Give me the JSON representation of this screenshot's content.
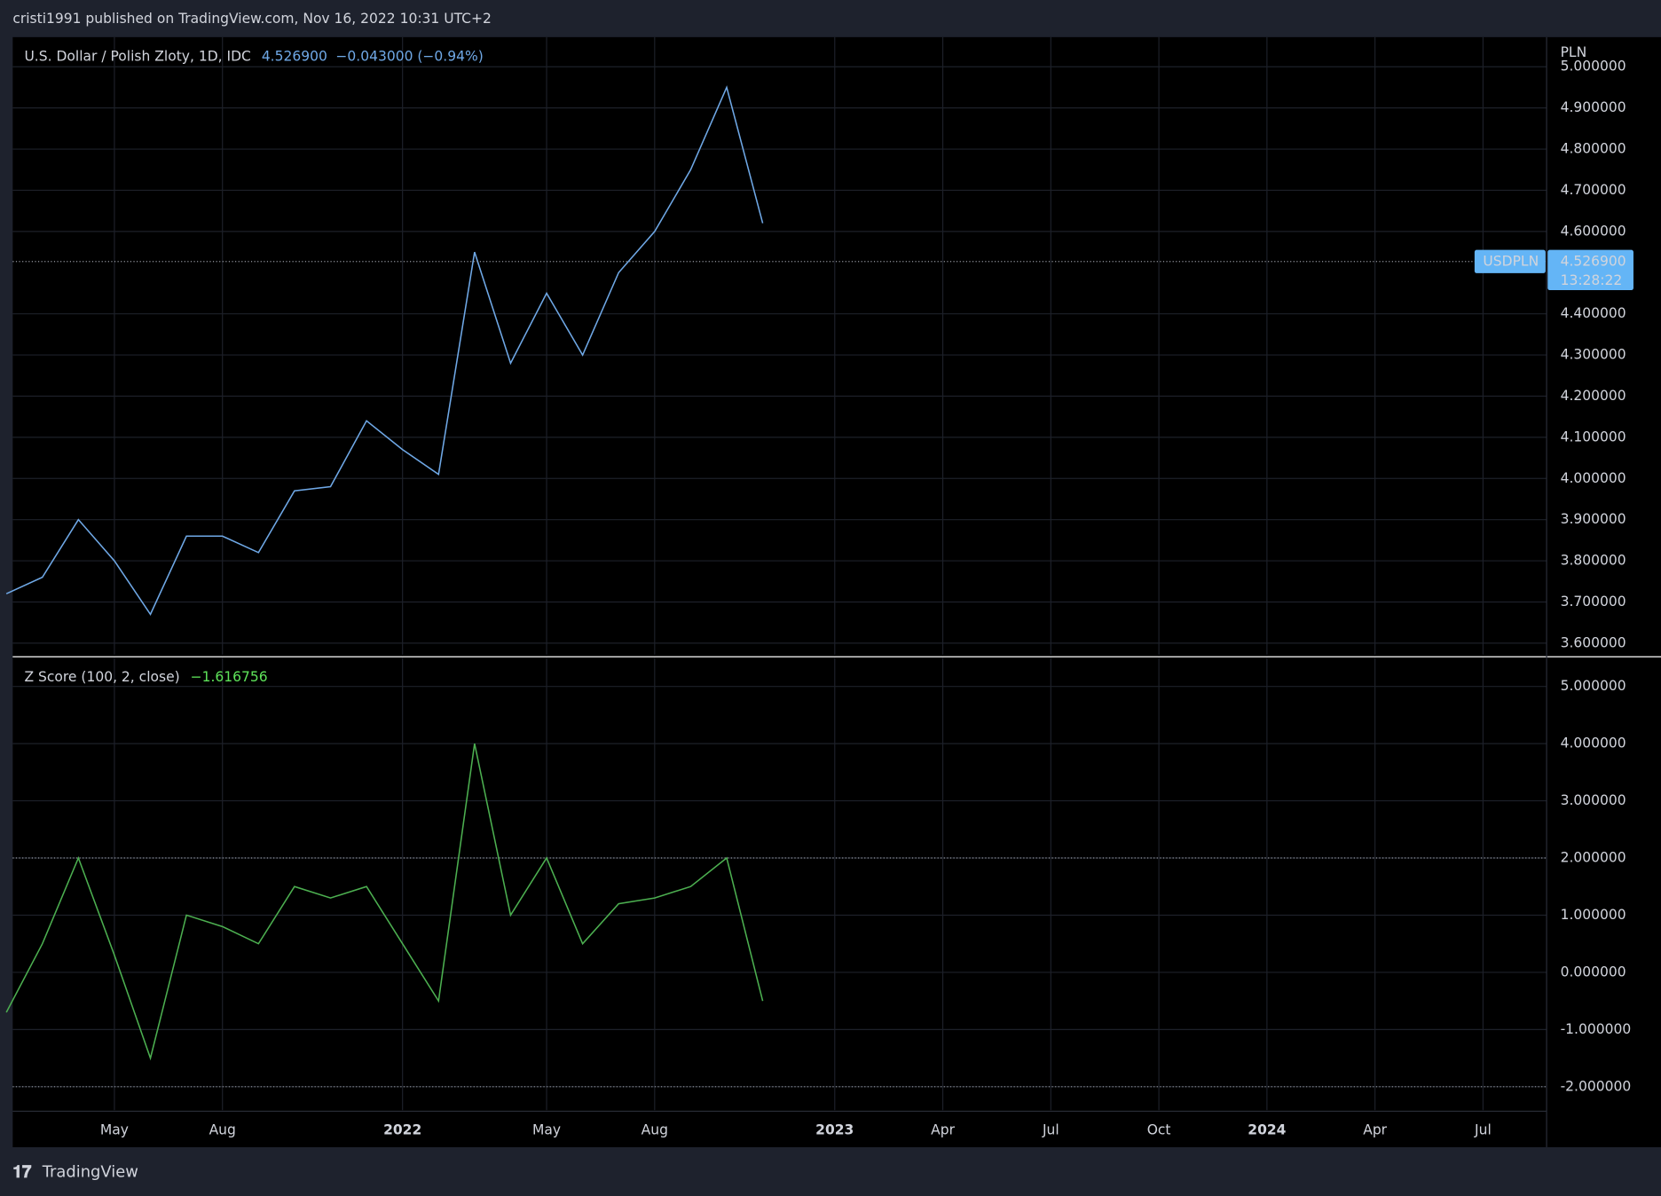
{
  "header": {
    "text": "cristi1991 published on TradingView.com, Nov 16, 2022 10:31 UTC+2"
  },
  "footer": {
    "brand": "TradingView"
  },
  "chart_data": [
    {
      "type": "line",
      "y_label": "PLN",
      "symbol": "USDPLN",
      "countdown": "13:28:22",
      "change": "−0.043000 (−0.94%)",
      "last_value": {
        "value": 4.5269,
        "label": "4.526900"
      },
      "xlim": [
        "2021-02",
        "2024-09"
      ],
      "x": [
        "2021-02",
        "2021-03",
        "2021-04",
        "2021-05",
        "2021-06",
        "2021-07",
        "2021-08",
        "2021-09",
        "2021-10",
        "2021-11",
        "2021-12",
        "2022-01",
        "2022-02",
        "2022-03",
        "2022-04",
        "2022-05",
        "2022-06",
        "2022-07",
        "2022-08",
        "2022-09",
        "2022-10",
        "2022-11"
      ],
      "series": [
        {
          "name": "U.S. Dollar / Polish Zloty, 1D, IDC",
          "color": "#6fa8e6",
          "values": [
            3.72,
            3.76,
            3.9,
            3.8,
            3.67,
            3.86,
            3.86,
            3.82,
            3.97,
            3.98,
            4.14,
            4.07,
            4.01,
            4.55,
            4.28,
            4.45,
            4.3,
            4.5,
            4.6,
            4.75,
            4.95,
            4.62
          ]
        }
      ],
      "ylim": [
        3.572,
        5.072
      ],
      "yticks": [
        {
          "value": 3.6,
          "label": "3.600000"
        },
        {
          "value": 3.7,
          "label": "3.700000"
        },
        {
          "value": 3.8,
          "label": "3.800000"
        },
        {
          "value": 3.9,
          "label": "3.900000"
        },
        {
          "value": 4.0,
          "label": "4.000000"
        },
        {
          "value": 4.1,
          "label": "4.100000"
        },
        {
          "value": 4.2,
          "label": "4.200000"
        },
        {
          "value": 4.3,
          "label": "4.300000"
        },
        {
          "value": 4.4,
          "label": "4.400000"
        },
        {
          "value": 4.6,
          "label": "4.600000"
        },
        {
          "value": 4.7,
          "label": "4.700000"
        },
        {
          "value": 4.8,
          "label": "4.800000"
        },
        {
          "value": 4.9,
          "label": "4.900000"
        },
        {
          "value": 5.0,
          "label": "5.000000"
        }
      ],
      "grid": true
    },
    {
      "type": "line",
      "last_value": {
        "value": -1.616756,
        "label": "−1.616756"
      },
      "xlim": [
        "2021-02",
        "2024-09"
      ],
      "x": [
        "2021-02",
        "2021-03",
        "2021-04",
        "2021-05",
        "2021-06",
        "2021-07",
        "2021-08",
        "2021-09",
        "2021-10",
        "2021-11",
        "2021-12",
        "2022-01",
        "2022-02",
        "2022-03",
        "2022-04",
        "2022-05",
        "2022-06",
        "2022-07",
        "2022-08",
        "2022-09",
        "2022-10",
        "2022-11"
      ],
      "series": [
        {
          "name": "Z Score (100, 2, close)",
          "color": "#4caf50",
          "values": [
            -0.7,
            0.5,
            2.0,
            0.3,
            -1.5,
            1.0,
            0.8,
            0.5,
            1.5,
            1.3,
            1.5,
            0.5,
            -0.5,
            4.0,
            1.0,
            2.0,
            0.5,
            1.2,
            1.3,
            1.5,
            2.0,
            -0.5
          ]
        }
      ],
      "bands": [
        -2,
        2
      ],
      "ylim": [
        -2.41,
        5.5
      ],
      "yticks": [
        {
          "value": -2,
          "label": "-2.000000"
        },
        {
          "value": -1,
          "label": "-1.000000"
        },
        {
          "value": 0,
          "label": "0.000000"
        },
        {
          "value": 1,
          "label": "1.000000"
        },
        {
          "value": 2,
          "label": "2.000000"
        },
        {
          "value": 3,
          "label": "3.000000"
        },
        {
          "value": 4,
          "label": "4.000000"
        },
        {
          "value": 5,
          "label": "5.000000"
        }
      ],
      "xticks": [
        {
          "value": "2021-05",
          "label": "May"
        },
        {
          "value": "2021-08",
          "label": "Aug"
        },
        {
          "value": "2022-01",
          "label": "2022"
        },
        {
          "value": "2022-05",
          "label": "May"
        },
        {
          "value": "2022-08",
          "label": "Aug"
        },
        {
          "value": "2023-01",
          "label": "2023"
        },
        {
          "value": "2023-04",
          "label": "Apr"
        },
        {
          "value": "2023-07",
          "label": "Jul"
        },
        {
          "value": "2023-10",
          "label": "Oct"
        },
        {
          "value": "2024-01",
          "label": "2024"
        },
        {
          "value": "2024-04",
          "label": "Apr"
        },
        {
          "value": "2024-07",
          "label": "Jul"
        }
      ],
      "grid": true
    }
  ]
}
